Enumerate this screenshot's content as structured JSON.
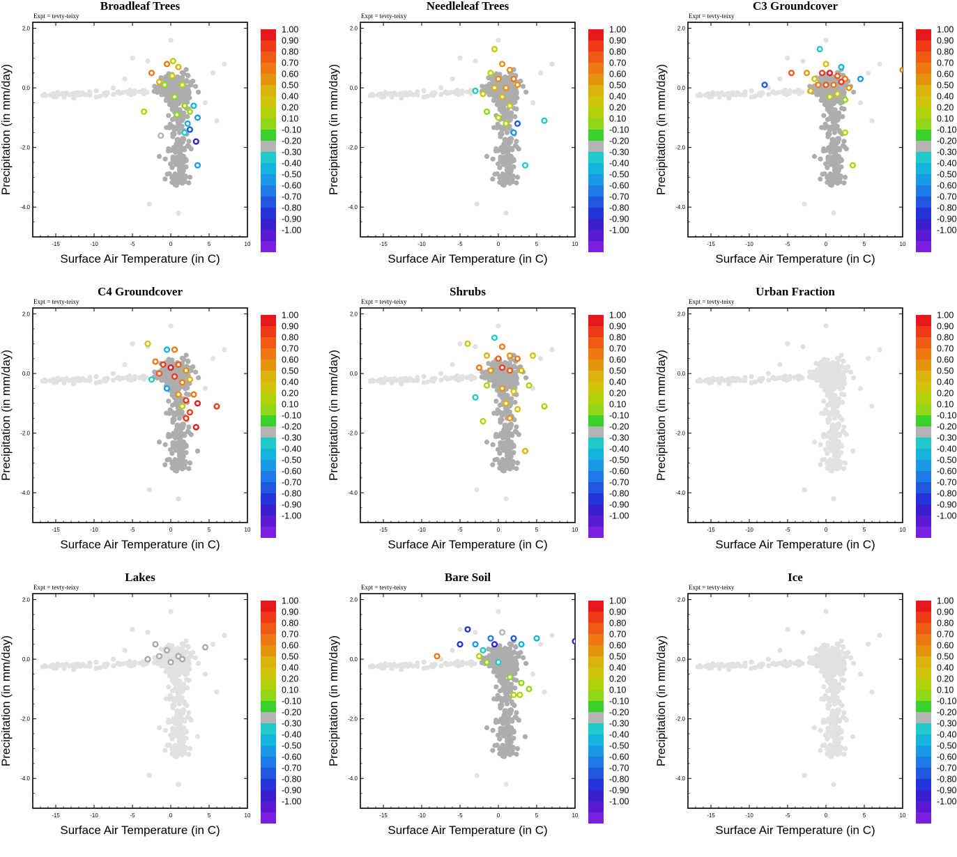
{
  "figure": {
    "expt_label": "Expt = tevty-teixy",
    "xlabel": "Surface Air Temperature (in C)",
    "ylabel": "Precipitation (in mm/day)"
  },
  "colorbar": {
    "labels": [
      "1.00",
      "0.90",
      "0.80",
      "0.70",
      "0.60",
      "0.50",
      "0.40",
      "0.20",
      "0.10",
      "-0.10",
      "-0.20",
      "-0.30",
      "-0.40",
      "-0.50",
      "-0.60",
      "-0.70",
      "-0.80",
      "-0.90",
      "-1.00"
    ],
    "colors": [
      "#e8191c",
      "#ee3a17",
      "#ef5a14",
      "#f07812",
      "#e4930f",
      "#dcb30d",
      "#cfc30b",
      "#b0d20b",
      "#8fd717",
      "#3ad12c",
      "#b3b3b3",
      "#22c9c9",
      "#14b4dd",
      "#1a9ae6",
      "#1f7ae8",
      "#2058e0",
      "#2434d8",
      "#3a20cc",
      "#5a1ad0",
      "#7a1ee0"
    ]
  },
  "chart_data": [
    {
      "type": "scatter",
      "title": "Broadleaf Trees",
      "xlabel": "Surface Air Temperature (in C)",
      "ylabel": "Precipitation (in mm/day)",
      "xlim": [
        -18,
        10
      ],
      "ylim": [
        -5,
        2.2
      ],
      "xticks": [
        "-15",
        "-10",
        "-5",
        "0",
        "5",
        "10"
      ],
      "yticks": [
        "2.0",
        "0.0",
        "-2.0",
        "-4.0"
      ],
      "colored_points": [
        {
          "x": -2.5,
          "y": 0.5,
          "c": 0.6
        },
        {
          "x": -0.5,
          "y": 0.8,
          "c": 0.6
        },
        {
          "x": 0.3,
          "y": 0.9,
          "c": 0.2
        },
        {
          "x": 1.0,
          "y": 0.7,
          "c": 0.4
        },
        {
          "x": -1.5,
          "y": 0.2,
          "c": 0.4
        },
        {
          "x": -0.8,
          "y": 0.1,
          "c": 0.1
        },
        {
          "x": 0.2,
          "y": 0.4,
          "c": 0.3
        },
        {
          "x": 1.5,
          "y": 0.1,
          "c": 0.2
        },
        {
          "x": 0.5,
          "y": -0.3,
          "c": 0.1
        },
        {
          "x": 1.8,
          "y": -0.6,
          "c": 0.1
        },
        {
          "x": 2.5,
          "y": -0.8,
          "c": 0.2
        },
        {
          "x": -3.5,
          "y": -0.8,
          "c": 0.2
        },
        {
          "x": 3.0,
          "y": -0.6,
          "c": -0.4
        },
        {
          "x": 3.5,
          "y": -1.0,
          "c": -0.5
        },
        {
          "x": 2.2,
          "y": -1.2,
          "c": -0.4
        },
        {
          "x": 2.5,
          "y": -1.4,
          "c": -0.7
        },
        {
          "x": 3.3,
          "y": -1.8,
          "c": -0.9
        },
        {
          "x": -1.3,
          "y": -1.6,
          "c": -0.2
        },
        {
          "x": 1.8,
          "y": -1.5,
          "c": -0.3
        },
        {
          "x": 3.5,
          "y": -2.6,
          "c": -0.5
        },
        {
          "x": 0.8,
          "y": -0.9,
          "c": 0.1
        }
      ]
    },
    {
      "type": "scatter",
      "title": "Needleleaf Trees",
      "xlabel": "Surface Air Temperature (in C)",
      "ylabel": "Precipitation (in mm/day)",
      "xlim": [
        -18,
        10
      ],
      "ylim": [
        -5,
        2.2
      ],
      "xticks": [
        "-15",
        "-10",
        "-5",
        "0",
        "5",
        "10"
      ],
      "yticks": [
        "2.0",
        "0.0",
        "-2.0",
        "-4.0"
      ],
      "colored_points": [
        {
          "x": -0.5,
          "y": 1.3,
          "c": 0.3
        },
        {
          "x": 0.5,
          "y": 0.8,
          "c": 0.5
        },
        {
          "x": 1.5,
          "y": 0.6,
          "c": 0.5
        },
        {
          "x": -1.0,
          "y": 0.5,
          "c": 0.2
        },
        {
          "x": 0.0,
          "y": 0.3,
          "c": 0.5
        },
        {
          "x": 2.0,
          "y": 0.3,
          "c": 0.6
        },
        {
          "x": -0.5,
          "y": 0.0,
          "c": 0.4
        },
        {
          "x": 1.0,
          "y": 0.0,
          "c": 0.5
        },
        {
          "x": 2.5,
          "y": 0.1,
          "c": 0.5
        },
        {
          "x": -2.0,
          "y": -0.2,
          "c": 0.3
        },
        {
          "x": 0.5,
          "y": -0.3,
          "c": 0.4
        },
        {
          "x": -3.0,
          "y": -0.1,
          "c": -0.3
        },
        {
          "x": 1.5,
          "y": -0.6,
          "c": 0.3
        },
        {
          "x": -1.5,
          "y": -0.8,
          "c": 0.1
        },
        {
          "x": 0.0,
          "y": -1.0,
          "c": 0.2
        },
        {
          "x": 2.5,
          "y": -1.2,
          "c": -0.7
        },
        {
          "x": 2.0,
          "y": -1.5,
          "c": -0.5
        },
        {
          "x": 6.0,
          "y": -1.1,
          "c": -0.3
        },
        {
          "x": 3.5,
          "y": -2.6,
          "c": -0.3
        },
        {
          "x": 1.0,
          "y": -1.2,
          "c": 0.2
        }
      ]
    },
    {
      "type": "scatter",
      "title": "C3 Groundcover",
      "xlabel": "Surface Air Temperature (in C)",
      "ylabel": "Precipitation (in mm/day)",
      "xlim": [
        -18,
        10
      ],
      "ylim": [
        -5,
        2.2
      ],
      "xticks": [
        "-15",
        "-10",
        "-5",
        "0",
        "5",
        "10"
      ],
      "yticks": [
        "2.0",
        "0.0",
        "-2.0",
        "-4.0"
      ],
      "colored_points": [
        {
          "x": -8.0,
          "y": 0.1,
          "c": -0.7
        },
        {
          "x": -4.5,
          "y": 0.5,
          "c": 0.7
        },
        {
          "x": -2.5,
          "y": 0.5,
          "c": 0.5
        },
        {
          "x": -1.5,
          "y": 0.3,
          "c": 0.3
        },
        {
          "x": -0.5,
          "y": 0.5,
          "c": 0.8
        },
        {
          "x": 0.5,
          "y": 0.5,
          "c": 0.9
        },
        {
          "x": 1.5,
          "y": 0.4,
          "c": 0.7
        },
        {
          "x": 2.5,
          "y": 0.3,
          "c": 0.6
        },
        {
          "x": -1.0,
          "y": 0.1,
          "c": 0.6
        },
        {
          "x": 0.0,
          "y": 0.1,
          "c": 0.7
        },
        {
          "x": 1.0,
          "y": 0.1,
          "c": 0.6
        },
        {
          "x": 2.0,
          "y": 0.2,
          "c": 0.8
        },
        {
          "x": 3.0,
          "y": 0.0,
          "c": 0.5
        },
        {
          "x": -2.0,
          "y": -0.1,
          "c": 0.4
        },
        {
          "x": 0.5,
          "y": -0.3,
          "c": 0.2
        },
        {
          "x": 1.5,
          "y": -0.2,
          "c": 0.3
        },
        {
          "x": 2.5,
          "y": -0.4,
          "c": 0.1
        },
        {
          "x": -0.8,
          "y": 1.3,
          "c": -0.3
        },
        {
          "x": 4.5,
          "y": 0.3,
          "c": -0.5
        },
        {
          "x": 2.0,
          "y": 0.7,
          "c": -0.4
        },
        {
          "x": 10.0,
          "y": 0.6,
          "c": 0.6
        },
        {
          "x": 2.5,
          "y": -1.5,
          "c": 0.2
        },
        {
          "x": 3.5,
          "y": -2.6,
          "c": 0.2
        },
        {
          "x": 0.0,
          "y": 0.8,
          "c": 0.3
        }
      ]
    },
    {
      "type": "scatter",
      "title": "C4 Groundcover",
      "xlabel": "Surface Air Temperature (in C)",
      "ylabel": "Precipitation (in mm/day)",
      "xlim": [
        -18,
        10
      ],
      "ylim": [
        -5,
        2.2
      ],
      "xticks": [
        "-15",
        "-10",
        "-5",
        "0",
        "5",
        "10"
      ],
      "yticks": [
        "2.0",
        "0.0",
        "-2.0",
        "-4.0"
      ],
      "colored_points": [
        {
          "x": -3.0,
          "y": 1.0,
          "c": 0.3
        },
        {
          "x": -0.5,
          "y": 0.8,
          "c": -0.4
        },
        {
          "x": 0.5,
          "y": 0.8,
          "c": 0.6
        },
        {
          "x": -2.0,
          "y": 0.4,
          "c": 0.6
        },
        {
          "x": -1.0,
          "y": 0.3,
          "c": 0.8
        },
        {
          "x": 0.0,
          "y": 0.2,
          "c": 0.9
        },
        {
          "x": 1.0,
          "y": 0.3,
          "c": 0.7
        },
        {
          "x": 2.0,
          "y": 0.1,
          "c": 0.5
        },
        {
          "x": -1.5,
          "y": 0.0,
          "c": 0.7
        },
        {
          "x": 0.5,
          "y": -0.1,
          "c": 0.8
        },
        {
          "x": 1.5,
          "y": -0.3,
          "c": 0.6
        },
        {
          "x": 2.5,
          "y": -0.2,
          "c": 0.4
        },
        {
          "x": -0.5,
          "y": -0.5,
          "c": -0.5
        },
        {
          "x": 1.0,
          "y": -0.7,
          "c": 0.5
        },
        {
          "x": 2.0,
          "y": -0.9,
          "c": 0.8
        },
        {
          "x": 3.0,
          "y": -0.7,
          "c": 0.6
        },
        {
          "x": 3.5,
          "y": -1.0,
          "c": 0.9
        },
        {
          "x": 2.5,
          "y": -1.3,
          "c": 0.8
        },
        {
          "x": 1.5,
          "y": -1.1,
          "c": 0.2
        },
        {
          "x": 3.3,
          "y": -1.8,
          "c": 0.9
        },
        {
          "x": 2.0,
          "y": -1.5,
          "c": 0.8
        },
        {
          "x": -2.5,
          "y": -0.2,
          "c": -0.3
        },
        {
          "x": 6.0,
          "y": -1.1,
          "c": 0.8
        }
      ]
    },
    {
      "type": "scatter",
      "title": "Shrubs",
      "xlabel": "Surface Air Temperature (in C)",
      "ylabel": "Precipitation (in mm/day)",
      "xlim": [
        -18,
        10
      ],
      "ylim": [
        -5,
        2.2
      ],
      "xticks": [
        "-15",
        "-10",
        "-5",
        "0",
        "5",
        "10"
      ],
      "yticks": [
        "2.0",
        "0.0",
        "-2.0",
        "-4.0"
      ],
      "colored_points": [
        {
          "x": -4.0,
          "y": 1.0,
          "c": 0.3
        },
        {
          "x": -0.5,
          "y": 1.2,
          "c": -0.3
        },
        {
          "x": 0.5,
          "y": 0.9,
          "c": 0.6
        },
        {
          "x": -1.5,
          "y": 0.6,
          "c": 0.4
        },
        {
          "x": 0.0,
          "y": 0.5,
          "c": 0.7
        },
        {
          "x": 1.5,
          "y": 0.6,
          "c": 0.5
        },
        {
          "x": 2.5,
          "y": 0.5,
          "c": 0.6
        },
        {
          "x": 4.5,
          "y": 0.6,
          "c": 0.3
        },
        {
          "x": -2.5,
          "y": 0.2,
          "c": 0.6
        },
        {
          "x": -1.0,
          "y": 0.1,
          "c": 0.5
        },
        {
          "x": 0.5,
          "y": 0.2,
          "c": 0.8
        },
        {
          "x": 1.5,
          "y": 0.1,
          "c": 0.7
        },
        {
          "x": 3.0,
          "y": 0.1,
          "c": 0.4
        },
        {
          "x": -1.5,
          "y": -0.4,
          "c": 0.2
        },
        {
          "x": 0.5,
          "y": -0.5,
          "c": 0.5
        },
        {
          "x": 2.0,
          "y": -0.6,
          "c": 0.3
        },
        {
          "x": 4.0,
          "y": -0.4,
          "c": 0.2
        },
        {
          "x": -3.0,
          "y": -0.8,
          "c": -0.3
        },
        {
          "x": 1.0,
          "y": -1.0,
          "c": 0.4
        },
        {
          "x": 2.5,
          "y": -1.2,
          "c": 0.3
        },
        {
          "x": 6.0,
          "y": -1.1,
          "c": 0.2
        },
        {
          "x": -2.0,
          "y": -1.6,
          "c": 0.2
        },
        {
          "x": 3.5,
          "y": -2.6,
          "c": 0.4
        },
        {
          "x": 1.5,
          "y": -1.5,
          "c": 0.5
        }
      ]
    },
    {
      "type": "scatter",
      "title": "Urban Fraction",
      "xlabel": "Surface Air Temperature (in C)",
      "ylabel": "Precipitation (in mm/day)",
      "xlim": [
        -18,
        10
      ],
      "ylim": [
        -5,
        2.2
      ],
      "xticks": [
        "-15",
        "-10",
        "-5",
        "0",
        "5",
        "10"
      ],
      "yticks": [
        "2.0",
        "0.0",
        "-2.0",
        "-4.0"
      ],
      "colored_points": []
    },
    {
      "type": "scatter",
      "title": "Lakes",
      "xlabel": "Surface Air Temperature (in C)",
      "ylabel": "Precipitation (in mm/day)",
      "xlim": [
        -18,
        10
      ],
      "ylim": [
        -5,
        2.2
      ],
      "xticks": [
        "-15",
        "-10",
        "-5",
        "0",
        "5",
        "10"
      ],
      "yticks": [
        "2.0",
        "0.0",
        "-2.0",
        "-4.0"
      ],
      "colored_points": [
        {
          "x": -3.0,
          "y": 0.0,
          "c": 0.0
        },
        {
          "x": -2.0,
          "y": 0.5,
          "c": 0.0
        },
        {
          "x": -1.5,
          "y": 0.1,
          "c": 0.0
        },
        {
          "x": 0.0,
          "y": -0.1,
          "c": 0.0
        },
        {
          "x": 1.0,
          "y": 0.1,
          "c": 0.0
        },
        {
          "x": -0.5,
          "y": 0.3,
          "c": 0.0
        },
        {
          "x": 1.5,
          "y": 0.0,
          "c": 0.0
        },
        {
          "x": 4.5,
          "y": 0.4,
          "c": 0.0
        }
      ]
    },
    {
      "type": "scatter",
      "title": "Bare Soil",
      "xlabel": "Surface Air Temperature (in C)",
      "ylabel": "Precipitation (in mm/day)",
      "xlim": [
        -18,
        10
      ],
      "ylim": [
        -5,
        2.2
      ],
      "xticks": [
        "-15",
        "-10",
        "-5",
        "0",
        "5",
        "10"
      ],
      "yticks": [
        "2.0",
        "0.0",
        "-2.0",
        "-4.0"
      ],
      "colored_points": [
        {
          "x": -8.0,
          "y": 0.1,
          "c": 0.6
        },
        {
          "x": -4.0,
          "y": 1.0,
          "c": -0.8
        },
        {
          "x": -5.0,
          "y": 0.5,
          "c": -0.8
        },
        {
          "x": -3.0,
          "y": 0.5,
          "c": -0.5
        },
        {
          "x": -2.0,
          "y": 0.3,
          "c": -0.3
        },
        {
          "x": -1.0,
          "y": 0.7,
          "c": -0.6
        },
        {
          "x": 0.5,
          "y": 0.9,
          "c": -0.2
        },
        {
          "x": 2.0,
          "y": 0.7,
          "c": -0.7
        },
        {
          "x": 3.0,
          "y": 0.5,
          "c": -0.4
        },
        {
          "x": 5.0,
          "y": 0.7,
          "c": -0.4
        },
        {
          "x": 10.0,
          "y": 0.6,
          "c": -0.8
        },
        {
          "x": -2.5,
          "y": 0.1,
          "c": 0.2
        },
        {
          "x": -1.5,
          "y": -0.1,
          "c": 0.1
        },
        {
          "x": 0.0,
          "y": -0.1,
          "c": -0.3
        },
        {
          "x": 1.5,
          "y": -0.6,
          "c": 0.1
        },
        {
          "x": 3.0,
          "y": -0.8,
          "c": 0.1
        },
        {
          "x": 2.0,
          "y": -1.2,
          "c": 0.2
        },
        {
          "x": 4.0,
          "y": -1.0,
          "c": 0.1
        },
        {
          "x": 2.8,
          "y": -1.2,
          "c": 0.2
        },
        {
          "x": -0.5,
          "y": 0.5,
          "c": -0.9
        }
      ]
    },
    {
      "type": "scatter",
      "title": "Ice",
      "xlabel": "Surface Air Temperature (in C)",
      "ylabel": "Precipitation (in mm/day)",
      "xlim": [
        -18,
        10
      ],
      "ylim": [
        -5,
        2.2
      ],
      "xticks": [
        "-15",
        "-10",
        "-5",
        "0",
        "5",
        "10"
      ],
      "yticks": [
        "2.0",
        "0.0",
        "-2.0",
        "-4.0"
      ],
      "colored_points": []
    }
  ]
}
